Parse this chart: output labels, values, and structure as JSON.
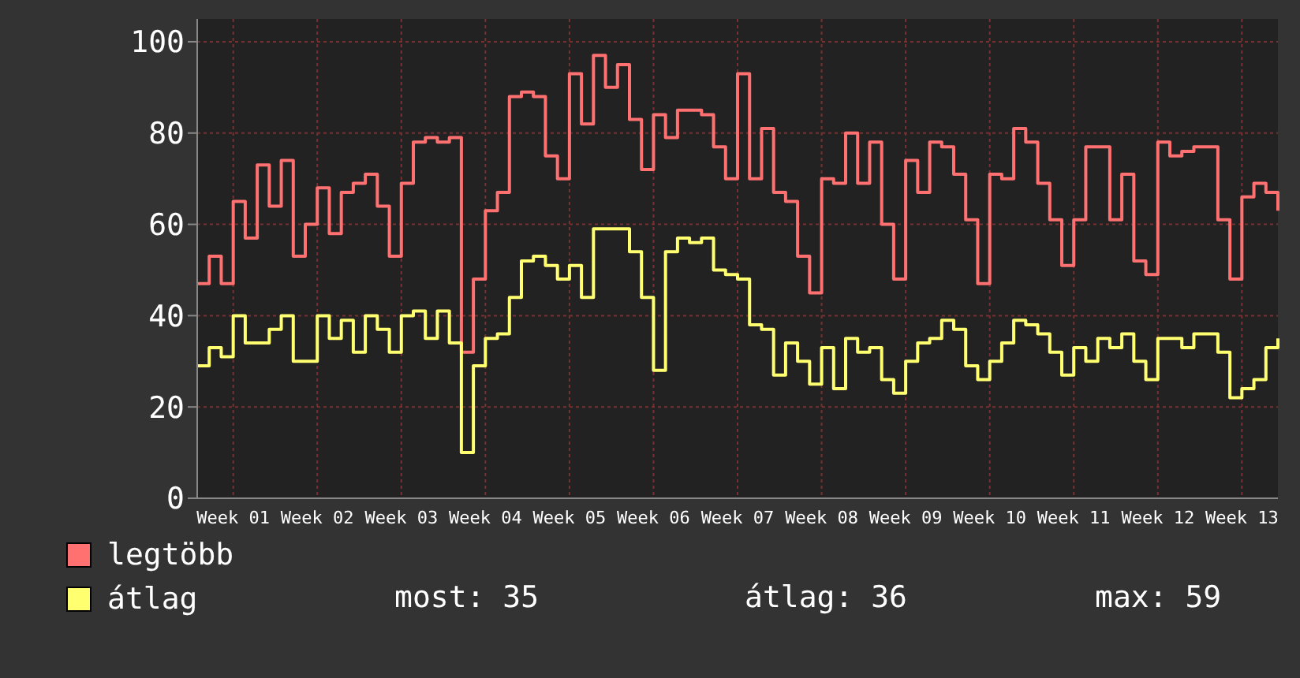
{
  "chart_data": {
    "type": "step",
    "categories": [
      null,
      null,
      null,
      "Week 01",
      null,
      null,
      null,
      null,
      null,
      null,
      "Week 02",
      null,
      null,
      null,
      null,
      null,
      null,
      "Week 03",
      null,
      null,
      null,
      null,
      null,
      null,
      "Week 04",
      null,
      null,
      null,
      null,
      null,
      null,
      "Week 05",
      null,
      null,
      null,
      null,
      null,
      null,
      "Week 06",
      null,
      null,
      null,
      null,
      null,
      null,
      "Week 07",
      null,
      null,
      null,
      null,
      null,
      null,
      "Week 08",
      null,
      null,
      null,
      null,
      null,
      null,
      "Week 09",
      null,
      null,
      null,
      null,
      null,
      null,
      "Week 10",
      null,
      null,
      null,
      null,
      null,
      null,
      "Week 11",
      null,
      null,
      null,
      null,
      null,
      null,
      "Week 12",
      null,
      null,
      null,
      null,
      null,
      null,
      "Week 13",
      null,
      null,
      null
    ],
    "series": [
      {
        "name": "legtöbb",
        "color": "#ff7070",
        "values": [
          47,
          53,
          47,
          65,
          57,
          73,
          64,
          74,
          53,
          60,
          68,
          58,
          67,
          69,
          71,
          64,
          53,
          69,
          78,
          79,
          78,
          79,
          32,
          48,
          63,
          67,
          88,
          89,
          88,
          75,
          70,
          93,
          82,
          97,
          90,
          95,
          83,
          72,
          84,
          79,
          85,
          85,
          84,
          77,
          70,
          93,
          70,
          81,
          67,
          65,
          53,
          45,
          70,
          69,
          80,
          69,
          78,
          60,
          48,
          74,
          67,
          78,
          77,
          71,
          61,
          47,
          71,
          70,
          81,
          78,
          69,
          61,
          51,
          61,
          77,
          77,
          61,
          71,
          52,
          49,
          78,
          75,
          76,
          77,
          77,
          61,
          48,
          66,
          69,
          67,
          63
        ]
      },
      {
        "name": "átlag",
        "color": "#ffff70",
        "values": [
          29,
          33,
          31,
          40,
          34,
          34,
          37,
          40,
          30,
          30,
          40,
          35,
          39,
          32,
          40,
          37,
          32,
          40,
          41,
          35,
          41,
          34,
          10,
          29,
          35,
          36,
          44,
          52,
          53,
          51,
          48,
          51,
          44,
          59,
          59,
          59,
          54,
          44,
          28,
          54,
          57,
          56,
          57,
          50,
          49,
          48,
          38,
          37,
          27,
          34,
          30,
          25,
          33,
          24,
          35,
          32,
          33,
          26,
          23,
          30,
          34,
          35,
          39,
          37,
          29,
          26,
          30,
          34,
          39,
          38,
          36,
          32,
          27,
          33,
          30,
          35,
          33,
          36,
          30,
          26,
          35,
          35,
          33,
          36,
          36,
          32,
          22,
          24,
          26,
          33,
          35
        ]
      }
    ],
    "ylim": [
      0,
      105
    ],
    "yticks": [
      0,
      20,
      40,
      60,
      80,
      100
    ],
    "grid": true,
    "legend": "bottom",
    "annotations": [
      "most: 35",
      "átlag: 36",
      "max: 59"
    ]
  }
}
